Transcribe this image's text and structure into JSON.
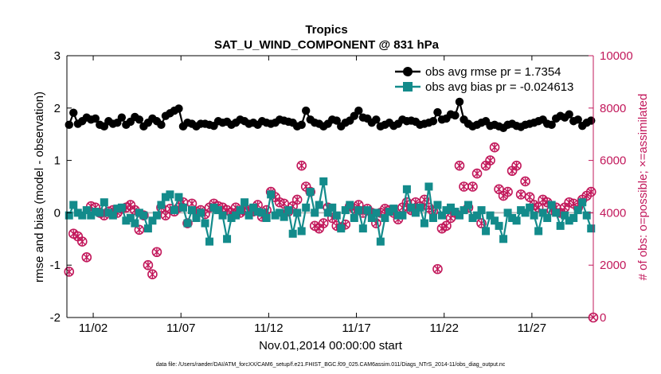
{
  "chart_data": {
    "type": "line",
    "title": "Tropics",
    "subtitle": "SAT_U_WIND_COMPONENT @ 831 hPa",
    "xlabel": "Nov.01,2014 00:00:00 start",
    "ylabel": "rmse and bias (model - observation)",
    "ylabel_right": "# of obs: o=possible; ×=assimilated",
    "footnote": "data file: /Users/raeder/DAI/ATM_forcXX/CAM6_setup/f.e21.FHIST_BGC.f09_025.CAM6assim.011/Diags_NTrS_2014-11/obs_diag_output.nc",
    "xlim": [
      0.5,
      30.5
    ],
    "ylim": [
      -2,
      3
    ],
    "ylim_right": [
      0,
      10000
    ],
    "x_ticks": [
      2,
      7,
      12,
      17,
      22,
      27
    ],
    "x_tick_labels": [
      "11/02",
      "11/07",
      "11/12",
      "11/17",
      "11/22",
      "11/27"
    ],
    "y_ticks": [
      -2,
      -1,
      0,
      1,
      2,
      3
    ],
    "y_tick_labels": [
      "-2",
      "-1",
      "0",
      "1",
      "2",
      "3"
    ],
    "y_right_ticks": [
      0,
      2000,
      4000,
      6000,
      8000,
      10000
    ],
    "y_right_tick_labels": [
      "0",
      "2000",
      "4000",
      "6000",
      "8000",
      "10000"
    ],
    "legend_position": "top-right",
    "zero_line": 0,
    "series": [
      {
        "name": "obs avg rmse pr = 1.7354",
        "axis": "left",
        "color": "#000000",
        "x": [
          0.625,
          0.875,
          1.125,
          1.375,
          1.625,
          1.875,
          2.125,
          2.375,
          2.625,
          2.875,
          3.125,
          3.375,
          3.625,
          3.875,
          4.125,
          4.375,
          4.625,
          4.875,
          5.125,
          5.375,
          5.625,
          5.875,
          6.125,
          6.375,
          6.625,
          6.875,
          7.125,
          7.375,
          7.625,
          7.875,
          8.125,
          8.375,
          8.625,
          8.875,
          9.125,
          9.375,
          9.625,
          9.875,
          10.125,
          10.375,
          10.625,
          10.875,
          11.125,
          11.375,
          11.625,
          11.875,
          12.125,
          12.375,
          12.625,
          12.875,
          13.125,
          13.375,
          13.625,
          13.875,
          14.125,
          14.375,
          14.625,
          14.875,
          15.125,
          15.375,
          15.625,
          15.875,
          16.125,
          16.375,
          16.625,
          16.875,
          17.125,
          17.375,
          17.625,
          17.875,
          18.125,
          18.375,
          18.625,
          18.875,
          19.125,
          19.375,
          19.625,
          19.875,
          20.125,
          20.375,
          20.625,
          20.875,
          21.125,
          21.375,
          21.625,
          21.875,
          22.125,
          22.375,
          22.625,
          22.875,
          23.125,
          23.375,
          23.625,
          23.875,
          24.125,
          24.375,
          24.625,
          24.875,
          25.125,
          25.375,
          25.625,
          25.875,
          26.125,
          26.375,
          26.625,
          26.875,
          27.125,
          27.375,
          27.625,
          27.875,
          28.125,
          28.375,
          28.625,
          28.875,
          29.125,
          29.375,
          29.625,
          29.875,
          30.125,
          30.375
        ],
        "values": [
          1.68,
          1.91,
          1.7,
          1.75,
          1.82,
          1.78,
          1.8,
          1.68,
          1.65,
          1.75,
          1.7,
          1.72,
          1.82,
          1.68,
          1.74,
          1.83,
          1.78,
          1.65,
          1.72,
          1.8,
          1.75,
          1.68,
          1.85,
          1.9,
          1.95,
          1.99,
          1.65,
          1.72,
          1.7,
          1.65,
          1.7,
          1.7,
          1.68,
          1.66,
          1.75,
          1.72,
          1.74,
          1.68,
          1.72,
          1.78,
          1.75,
          1.7,
          1.72,
          1.68,
          1.75,
          1.72,
          1.7,
          1.72,
          1.78,
          1.76,
          1.74,
          1.72,
          1.65,
          1.68,
          1.95,
          1.78,
          1.72,
          1.7,
          1.65,
          1.7,
          1.78,
          1.76,
          1.65,
          1.72,
          1.76,
          1.85,
          1.95,
          1.82,
          1.8,
          1.72,
          1.78,
          1.65,
          1.68,
          1.72,
          1.66,
          1.7,
          1.78,
          1.75,
          1.76,
          1.74,
          1.68,
          1.7,
          1.72,
          1.75,
          1.92,
          1.78,
          1.8,
          1.88,
          1.86,
          2.12,
          1.78,
          1.7,
          1.65,
          1.68,
          1.72,
          1.75,
          1.66,
          1.68,
          1.65,
          1.62,
          1.68,
          1.7,
          1.66,
          1.64,
          1.68,
          1.7,
          1.72,
          1.75,
          1.78,
          1.7,
          1.68,
          1.8,
          1.85,
          1.82,
          1.88,
          1.75,
          1.78,
          1.66,
          1.72,
          1.76
        ],
        "marker": "circle"
      },
      {
        "name": "obs avg bias pr = -0.024613",
        "axis": "left",
        "color": "#138b8b",
        "x": [
          0.625,
          0.875,
          1.125,
          1.375,
          1.625,
          1.875,
          2.125,
          2.375,
          2.625,
          2.875,
          3.125,
          3.375,
          3.625,
          3.875,
          4.125,
          4.375,
          4.625,
          4.875,
          5.125,
          5.375,
          5.625,
          5.875,
          6.125,
          6.375,
          6.625,
          6.875,
          7.125,
          7.375,
          7.625,
          7.875,
          8.125,
          8.375,
          8.625,
          8.875,
          9.125,
          9.375,
          9.625,
          9.875,
          10.125,
          10.375,
          10.625,
          10.875,
          11.125,
          11.375,
          11.625,
          11.875,
          12.125,
          12.375,
          12.625,
          12.875,
          13.125,
          13.375,
          13.625,
          13.875,
          14.125,
          14.375,
          14.625,
          14.875,
          15.125,
          15.375,
          15.625,
          15.875,
          16.125,
          16.375,
          16.625,
          16.875,
          17.125,
          17.375,
          17.625,
          17.875,
          18.125,
          18.375,
          18.625,
          18.875,
          19.125,
          19.375,
          19.625,
          19.875,
          20.125,
          20.375,
          20.625,
          20.875,
          21.125,
          21.375,
          21.625,
          21.875,
          22.125,
          22.375,
          22.625,
          22.875,
          23.125,
          23.375,
          23.625,
          23.875,
          24.125,
          24.375,
          24.625,
          24.875,
          25.125,
          25.375,
          25.625,
          25.875,
          26.125,
          26.375,
          26.625,
          26.875,
          27.125,
          27.375,
          27.625,
          27.875,
          28.125,
          28.375,
          28.625,
          28.875,
          29.125,
          29.375,
          29.625,
          29.875,
          30.125,
          30.375
        ],
        "values": [
          -0.05,
          0.15,
          0.0,
          -0.05,
          0.05,
          -0.05,
          0.02,
          0.0,
          0.2,
          0.0,
          -0.05,
          0.08,
          0.1,
          -0.15,
          -0.1,
          -0.2,
          0.0,
          -0.05,
          -0.3,
          -0.15,
          -0.05,
          0.15,
          0.3,
          0.35,
          0.05,
          0.3,
          0.1,
          -0.2,
          0.05,
          -0.1,
          0.0,
          -0.2,
          -0.55,
          0.1,
          0.05,
          -0.05,
          -0.5,
          -0.1,
          -0.05,
          0.05,
          0.2,
          -0.05,
          0.1,
          0.02,
          0.0,
          -0.1,
          0.35,
          -0.05,
          0.0,
          -0.08,
          0.05,
          -0.4,
          0.0,
          -0.35,
          0.1,
          0.4,
          0.0,
          0.15,
          0.6,
          0.0,
          0.1,
          -0.05,
          -0.3,
          0.05,
          0.15,
          -0.1,
          0.05,
          -0.3,
          0.05,
          -0.1,
          0.0,
          -0.55,
          -0.1,
          0.02,
          0.08,
          -0.05,
          -0.05,
          0.45,
          0.1,
          0.0,
          0.1,
          -0.2,
          0.5,
          -0.1,
          0.15,
          -0.05,
          0.05,
          0.1,
          0.02,
          -0.05,
          0.05,
          0.15,
          -0.1,
          -0.05,
          0.05,
          -0.35,
          -0.05,
          -0.15,
          -0.25,
          -0.5,
          0.0,
          -0.1,
          -0.15,
          0.05,
          0.0,
          0.1,
          -0.05,
          -0.35,
          0.0,
          -0.1,
          0.15,
          0.0,
          -0.25,
          -0.05,
          -0.15,
          -0.1,
          0.05,
          0.2,
          -0.05,
          -0.3
        ],
        "marker": "square"
      },
      {
        "name": "possible",
        "axis": "right",
        "color": "#c2185b",
        "x": [
          0.625,
          0.875,
          1.125,
          1.375,
          1.625,
          1.875,
          2.125,
          2.375,
          2.625,
          2.875,
          3.125,
          3.375,
          3.625,
          3.875,
          4.125,
          4.375,
          4.625,
          4.875,
          5.125,
          5.375,
          5.625,
          5.875,
          6.125,
          6.375,
          6.625,
          6.875,
          7.125,
          7.375,
          7.625,
          7.875,
          8.125,
          8.375,
          8.625,
          8.875,
          9.125,
          9.375,
          9.625,
          9.875,
          10.125,
          10.375,
          10.625,
          10.875,
          11.125,
          11.375,
          11.625,
          11.875,
          12.125,
          12.375,
          12.625,
          12.875,
          13.125,
          13.375,
          13.625,
          13.875,
          14.125,
          14.375,
          14.625,
          14.875,
          15.125,
          15.375,
          15.625,
          15.875,
          16.125,
          16.375,
          16.625,
          16.875,
          17.125,
          17.375,
          17.625,
          17.875,
          18.125,
          18.375,
          18.625,
          18.875,
          19.125,
          19.375,
          19.625,
          19.875,
          20.125,
          20.375,
          20.625,
          20.875,
          21.125,
          21.375,
          21.625,
          21.875,
          22.125,
          22.375,
          22.625,
          22.875,
          23.125,
          23.375,
          23.625,
          23.875,
          24.125,
          24.375,
          24.625,
          24.875,
          25.125,
          25.375,
          25.625,
          25.875,
          26.125,
          26.375,
          26.625,
          26.875,
          27.125,
          27.375,
          27.625,
          27.875,
          28.125,
          28.375,
          28.625,
          28.875,
          29.125,
          29.375,
          29.625,
          29.875,
          30.125,
          30.375
        ],
        "values": [
          1750,
          3200,
          3100,
          2900,
          2300,
          4250,
          4200,
          4000,
          3900,
          4050,
          4100,
          4000,
          4150,
          4200,
          4300,
          4100,
          3350,
          3900,
          2000,
          1650,
          2500,
          4200,
          3900,
          4150,
          4050,
          4200,
          4400,
          3600,
          4350,
          4050,
          4100,
          3950,
          4200,
          4350,
          4250,
          4200,
          4100,
          4000,
          4200,
          4000,
          4100,
          4100,
          4050,
          4300,
          3850,
          4100,
          4800,
          4600,
          4400,
          4350,
          4050,
          4250,
          4500,
          5800,
          5000,
          4800,
          3500,
          3400,
          3600,
          4200,
          3800,
          3500,
          3450,
          3550,
          4250,
          4150,
          4300,
          4000,
          4150,
          4000,
          3600,
          4000,
          4150,
          4100,
          4000,
          3750,
          4200,
          4400,
          4100,
          4400,
          4250,
          4500,
          4200,
          4050,
          1850,
          3400,
          3500,
          3800,
          4000,
          5800,
          5000,
          4200,
          5000,
          5500,
          3600,
          5800,
          6000,
          6500,
          4900,
          4650,
          4800,
          5600,
          5800,
          4700,
          5200,
          4600,
          4300,
          4200,
          4500,
          4400,
          4100,
          4200,
          4000,
          4200,
          4400,
          4350,
          4200,
          4500,
          4650,
          4800
        ],
        "marker": "circle-open"
      },
      {
        "name": "assimilated",
        "axis": "right",
        "color": "#c2185b",
        "x": [
          0.625,
          0.875,
          1.125,
          1.375,
          1.625,
          1.875,
          2.125,
          2.375,
          2.625,
          2.875,
          3.125,
          3.375,
          3.625,
          3.875,
          4.125,
          4.375,
          4.625,
          4.875,
          5.125,
          5.375,
          5.625,
          5.875,
          6.125,
          6.375,
          6.625,
          6.875,
          7.125,
          7.375,
          7.625,
          7.875,
          8.125,
          8.375,
          8.625,
          8.875,
          9.125,
          9.375,
          9.625,
          9.875,
          10.125,
          10.375,
          10.625,
          10.875,
          11.125,
          11.375,
          11.625,
          11.875,
          12.125,
          12.375,
          12.625,
          12.875,
          13.125,
          13.375,
          13.625,
          13.875,
          14.125,
          14.375,
          14.625,
          14.875,
          15.125,
          15.375,
          15.625,
          15.875,
          16.125,
          16.375,
          16.625,
          16.875,
          17.125,
          17.375,
          17.625,
          17.875,
          18.125,
          18.375,
          18.625,
          18.875,
          19.125,
          19.375,
          19.625,
          19.875,
          20.125,
          20.375,
          20.625,
          20.875,
          21.125,
          21.375,
          21.625,
          21.875,
          22.125,
          22.375,
          22.625,
          22.875,
          23.125,
          23.375,
          23.625,
          23.875,
          24.125,
          24.375,
          24.625,
          24.875,
          25.125,
          25.375,
          25.625,
          25.875,
          26.125,
          26.375,
          26.625,
          26.875,
          27.125,
          27.375,
          27.625,
          27.875,
          28.125,
          28.375,
          28.625,
          28.875,
          29.125,
          29.375,
          29.625,
          29.875,
          30.125,
          30.375
        ],
        "values": [
          1750,
          3200,
          3100,
          2900,
          2300,
          4250,
          4200,
          4000,
          3900,
          4050,
          4100,
          4000,
          4150,
          4200,
          4300,
          4100,
          3350,
          3900,
          2000,
          1650,
          2500,
          4200,
          3900,
          4150,
          4050,
          4200,
          4400,
          3600,
          4350,
          4050,
          4100,
          3950,
          4200,
          4350,
          4250,
          4200,
          4100,
          4000,
          4200,
          4000,
          4100,
          4100,
          4050,
          4300,
          3850,
          4100,
          4800,
          4600,
          4400,
          4350,
          4050,
          4250,
          4500,
          5800,
          5000,
          4800,
          3500,
          3400,
          3600,
          4200,
          3800,
          3500,
          3450,
          3550,
          4250,
          4150,
          4300,
          4000,
          4150,
          4000,
          3600,
          4000,
          4150,
          4100,
          4000,
          3750,
          4200,
          4400,
          4100,
          4400,
          4250,
          4500,
          4200,
          4050,
          1850,
          3400,
          3500,
          3800,
          4000,
          5800,
          5000,
          4200,
          5000,
          5500,
          3600,
          5800,
          6000,
          6500,
          4900,
          4650,
          4800,
          5600,
          5800,
          4700,
          5200,
          4600,
          4300,
          4200,
          4500,
          4400,
          4100,
          4200,
          4000,
          4200,
          4400,
          4350,
          4200,
          4500,
          4650,
          4800
        ],
        "marker": "x"
      }
    ],
    "extra_points_right": {
      "x": [
        30.5
      ],
      "values": [
        0
      ],
      "note": "marker at right axis bottom"
    }
  }
}
